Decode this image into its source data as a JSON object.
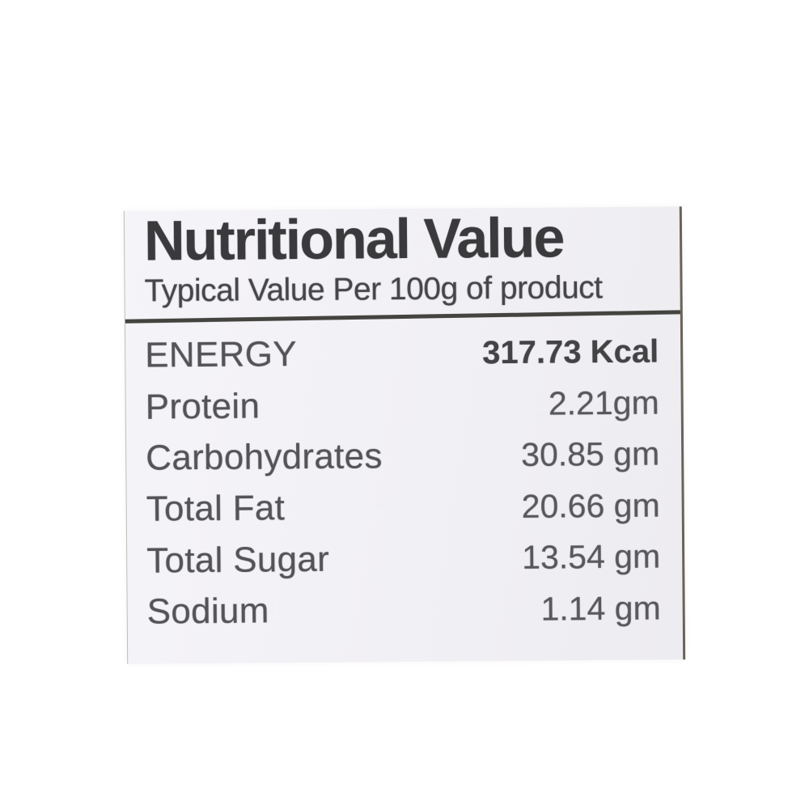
{
  "label": {
    "title": "Nutritional Value",
    "subtitle": "Typical Value Per 100g of product",
    "rows": [
      {
        "name": "ENERGY",
        "value": "317.73 Kcal"
      },
      {
        "name": "Protein",
        "value": "2.21gm"
      },
      {
        "name": "Carbohydrates",
        "value": "30.85 gm"
      },
      {
        "name": "Total Fat",
        "value": "20.66 gm"
      },
      {
        "name": "Total Sugar",
        "value": "13.54 gm"
      },
      {
        "name": "Sodium",
        "value": "1.14 gm"
      }
    ],
    "colors": {
      "page_background": "#ffffff",
      "label_background": "#f1f0f4",
      "title_text": "#3a3a3c",
      "subtitle_text": "#464648",
      "row_text": "#545456",
      "divider": "#45433f",
      "right_edge_line": "#6a635a"
    }
  }
}
